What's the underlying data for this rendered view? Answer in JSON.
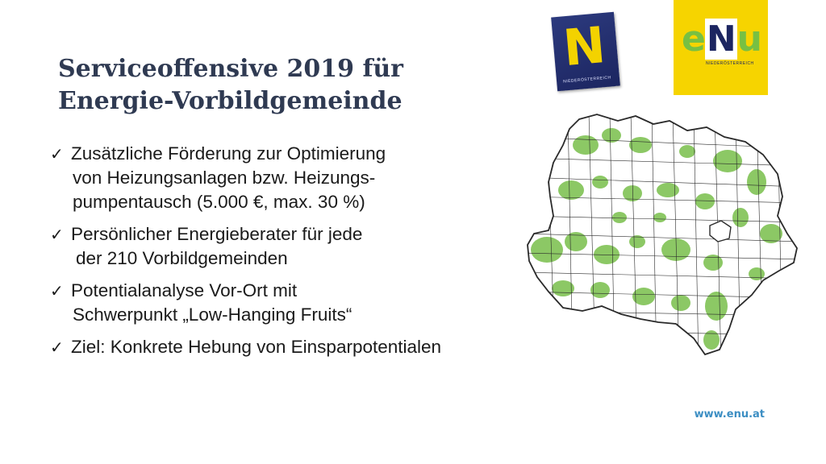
{
  "title": {
    "line1": "Serviceoffensive 2019 für",
    "line2": "Energie-Vorbildgemeinde"
  },
  "bullets": [
    {
      "check": "✓",
      "lines": [
        "Zusätzliche Förderung zur Optimierung",
        "von Heizungsanlagen bzw. Heizungs-",
        "pumpentausch (5.000 €, max. 30 %)"
      ]
    },
    {
      "check": "✓",
      "lines": [
        "Persönlicher Energieberater für jede",
        "der 210 Vorbildgemeinden"
      ]
    },
    {
      "check": "✓",
      "lines": [
        "Potentialanalyse Vor-Ort mit",
        "Schwerpunkt „Low-Hanging Fruits“"
      ]
    },
    {
      "check": "✓",
      "lines": [
        "Ziel: Konkrete Hebung von Einsparpotentialen"
      ]
    }
  ],
  "logos": {
    "noe": {
      "letter": "N",
      "sub": "NIEDERÖSTERREICH"
    },
    "enu": {
      "e": "e",
      "n": "N",
      "u": "u",
      "sub": "NIEDERÖSTERREICH"
    }
  },
  "footer": {
    "url": "www.enu.at"
  },
  "colors": {
    "title": "#2f3a52",
    "map_green": "#8cc865",
    "map_border": "#2a2a2a",
    "url": "#3c8ec3",
    "enu_yellow": "#f6d400",
    "noe_blue": "#1c2560"
  }
}
